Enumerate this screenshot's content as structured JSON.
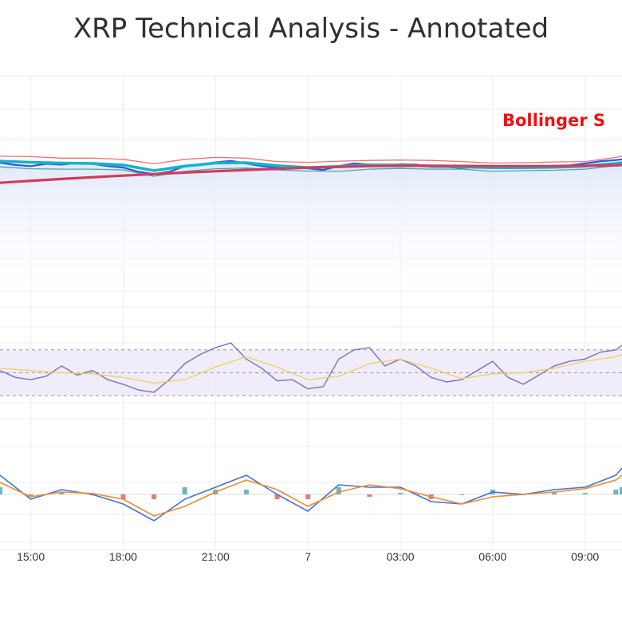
{
  "title": "XRP Technical Analysis - Annotated",
  "annotation": "Bollinger S",
  "chart_data": {
    "type": "line",
    "x_tick_labels": [
      "15:00",
      "18:00",
      "21:00",
      "7",
      "03:00",
      "06:00",
      "09:00"
    ],
    "x_tick_hours": [
      15,
      18,
      21,
      24,
      27,
      30,
      33
    ],
    "x_range_hours": [
      14,
      34.2
    ],
    "panels": [
      {
        "name": "price",
        "ylim": [
          0.74,
          0.8
        ],
        "grid": true,
        "series": [
          {
            "role": "price",
            "color": "#3355dd",
            "x": [
              14,
              14.5,
              15,
              15.5,
              16,
              16.5,
              17,
              17.5,
              18,
              18.5,
              19,
              19.5,
              20,
              20.5,
              21,
              21.5,
              22,
              22.5,
              23,
              23.5,
              24,
              24.5,
              25,
              25.5,
              26,
              26.5,
              27,
              27.5,
              28,
              28.5,
              29,
              29.5,
              30,
              30.5,
              31,
              31.5,
              32,
              32.5,
              33,
              33.5,
              34,
              34.2
            ],
            "y": [
              0.7781,
              0.7775,
              0.7772,
              0.7778,
              0.7776,
              0.778,
              0.7778,
              0.7772,
              0.7768,
              0.7757,
              0.7751,
              0.7757,
              0.7772,
              0.7776,
              0.7782,
              0.7786,
              0.7779,
              0.7772,
              0.7768,
              0.7771,
              0.7766,
              0.7762,
              0.7772,
              0.7779,
              0.7776,
              0.7772,
              0.7777,
              0.7776,
              0.777,
              0.777,
              0.7767,
              0.777,
              0.7771,
              0.7768,
              0.7767,
              0.7771,
              0.7773,
              0.7774,
              0.7779,
              0.7785,
              0.7788,
              0.779
            ]
          },
          {
            "role": "bollinger-upper",
            "color": "#f07070",
            "x": [
              14,
              15,
              16,
              17,
              18,
              19,
              20,
              21,
              22,
              23,
              24,
              25,
              26,
              27,
              28,
              29,
              30,
              31,
              32,
              33,
              34,
              34.2
            ],
            "y": [
              0.7798,
              0.7797,
              0.7793,
              0.7793,
              0.779,
              0.7778,
              0.779,
              0.7795,
              0.7793,
              0.7784,
              0.7782,
              0.7785,
              0.7787,
              0.7788,
              0.7787,
              0.7784,
              0.778,
              0.7781,
              0.7783,
              0.7784,
              0.7795,
              0.7798
            ]
          },
          {
            "role": "bollinger-lower",
            "color": "#48a8a0",
            "x": [
              14,
              15,
              16,
              17,
              18,
              19,
              20,
              21,
              22,
              23,
              24,
              25,
              26,
              27,
              28,
              29,
              30,
              31,
              32,
              33,
              34,
              34.2
            ],
            "y": [
              0.777,
              0.7765,
              0.7764,
              0.7764,
              0.7762,
              0.7745,
              0.7758,
              0.7765,
              0.7767,
              0.7762,
              0.7759,
              0.7758,
              0.7764,
              0.7766,
              0.7764,
              0.7764,
              0.7758,
              0.776,
              0.7761,
              0.7764,
              0.7773,
              0.7776
            ]
          },
          {
            "role": "moving-average-short",
            "color": "#14b4c8",
            "x": [
              14,
              15,
              16,
              17,
              18,
              19,
              20,
              21,
              22,
              23,
              24,
              25,
              26,
              27,
              28,
              29,
              30,
              31,
              32,
              33,
              34,
              34.2
            ],
            "y": [
              0.7785,
              0.7782,
              0.778,
              0.7779,
              0.7775,
              0.776,
              0.7772,
              0.778,
              0.7781,
              0.7773,
              0.7768,
              0.7771,
              0.7775,
              0.7775,
              0.7772,
              0.777,
              0.7768,
              0.7768,
              0.7769,
              0.7772,
              0.7779,
              0.7781
            ]
          },
          {
            "role": "moving-average-long",
            "color": "#d23c5a",
            "x": [
              14,
              16,
              18,
              20,
              22,
              24,
              26,
              28,
              30,
              32,
              34,
              34.2
            ],
            "y": [
              0.7728,
              0.7738,
              0.7747,
              0.7755,
              0.7762,
              0.7768,
              0.7772,
              0.7773,
              0.7772,
              0.7772,
              0.7774,
              0.7775
            ]
          }
        ]
      },
      {
        "name": "rsi",
        "ylim": [
          10,
          90
        ],
        "bands": [
          70,
          50,
          30
        ],
        "series": [
          {
            "role": "rsi",
            "color": "#7a70c0",
            "x": [
              14,
              14.5,
              15,
              15.5,
              16,
              16.5,
              17,
              17.5,
              18,
              18.5,
              19,
              19.5,
              20,
              20.5,
              21,
              21.5,
              22,
              22.5,
              23,
              23.5,
              24,
              24.5,
              25,
              25.5,
              26,
              26.5,
              27,
              27.5,
              28,
              28.5,
              29,
              29.5,
              30,
              30.5,
              31,
              31.5,
              32,
              32.5,
              33,
              33.5,
              34,
              34.2
            ],
            "y": [
              52,
              46,
              44,
              47,
              56,
              48,
              52,
              44,
              40,
              35,
              33,
              44,
              58,
              66,
              72,
              76,
              62,
              54,
              43,
              44,
              36,
              38,
              62,
              70,
              72,
              56,
              62,
              56,
              46,
              42,
              44,
              52,
              60,
              46,
              40,
              48,
              56,
              60,
              62,
              68,
              70,
              74
            ]
          },
          {
            "role": "rsi-signal",
            "color": "#f0d060",
            "x": [
              14,
              15,
              16,
              17,
              18,
              19,
              20,
              21,
              22,
              23,
              24,
              25,
              26,
              27,
              28,
              29,
              30,
              31,
              32,
              33,
              34,
              34.2
            ],
            "y": [
              54,
              52,
              50,
              49,
              46,
              41,
              44,
              55,
              64,
              55,
              44,
              47,
              58,
              62,
              54,
              45,
              49,
              50,
              54,
              60,
              64,
              66
            ]
          }
        ]
      },
      {
        "name": "macd",
        "ylim": [
          -0.001,
          0.001
        ],
        "series": [
          {
            "role": "macd",
            "color": "#4070e8",
            "x": [
              14,
              15,
              16,
              17,
              18,
              19,
              20,
              21,
              22,
              23,
              24,
              25,
              26,
              27,
              28,
              29,
              30,
              31,
              32,
              33,
              34,
              34.2
            ],
            "y": [
              0.0004,
              -0.0001,
              0.0001,
              0.0,
              -0.0002,
              -0.00055,
              -0.0001,
              0.00015,
              0.0004,
              0.0,
              -0.00035,
              0.0002,
              0.00015,
              0.00015,
              -0.00015,
              -0.0002,
              5e-05,
              0.0,
              0.0001,
              0.00015,
              0.0004,
              0.00055
            ]
          },
          {
            "role": "macd-signal",
            "color": "#f08c2a",
            "x": [
              14,
              15,
              16,
              17,
              18,
              19,
              20,
              21,
              22,
              23,
              24,
              25,
              26,
              27,
              28,
              29,
              30,
              31,
              32,
              33,
              34,
              34.2
            ],
            "y": [
              0.00025,
              -5e-05,
              5e-05,
              2e-05,
              -0.0001,
              -0.00045,
              -0.00025,
              5e-05,
              0.0003,
              0.0001,
              -0.00025,
              5e-05,
              0.0002,
              0.00012,
              -5e-05,
              -0.0002,
              -5e-05,
              0.0,
              5e-05,
              0.00012,
              0.0003,
              0.0004
            ]
          }
        ]
      }
    ]
  }
}
